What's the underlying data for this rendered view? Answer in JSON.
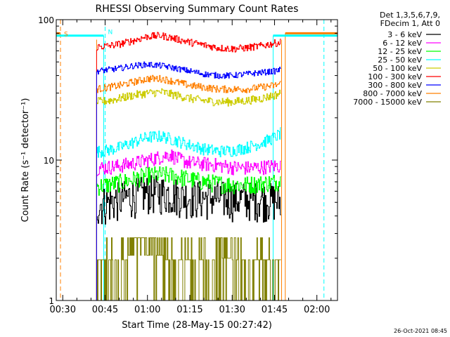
{
  "chart_data": {
    "type": "line",
    "title": "RHESSI Observing Summary Count Rates",
    "xlabel": "Start Time (28-May-15 00:27:42)",
    "ylabel": "Count Rate (s⁻¹ detector⁻¹)",
    "y_scale": "log",
    "ylim": [
      1,
      100
    ],
    "xlim_minutes": [
      27.7,
      127.3
    ],
    "y_ticks": [
      {
        "value": 1,
        "label": "1"
      },
      {
        "value": 10,
        "label": "10"
      },
      {
        "value": 100,
        "label": "100"
      }
    ],
    "x_ticks": [
      {
        "minutes": 30,
        "label": "00:30"
      },
      {
        "minutes": 45,
        "label": "00:45"
      },
      {
        "minutes": 60,
        "label": "01:00"
      },
      {
        "minutes": 75,
        "label": "01:15"
      },
      {
        "minutes": 90,
        "label": "01:30"
      },
      {
        "minutes": 105,
        "label": "01:45"
      },
      {
        "minutes": 120,
        "label": "02:00"
      }
    ],
    "legend_header": [
      "Det 1,3,5,6,7,9,",
      "FDecim 1, Att 0"
    ],
    "legend_position": "outside-right",
    "series": [
      {
        "name": "3 - 6 keV",
        "color": "#000000",
        "x": [
          42,
          46,
          50,
          55,
          60,
          65,
          70,
          75,
          80,
          85,
          90,
          95,
          100,
          105,
          107
        ],
        "y": [
          4.8,
          5.0,
          5.3,
          5.6,
          5.9,
          5.9,
          5.7,
          5.5,
          5.4,
          5.4,
          5.3,
          5.3,
          5.3,
          5.2,
          5.1
        ]
      },
      {
        "name": "6 - 12 keV",
        "color": "#ff00ff",
        "x": [
          42,
          46,
          50,
          55,
          60,
          65,
          68,
          70,
          75,
          80,
          85,
          90,
          95,
          100,
          105,
          107
        ],
        "y": [
          8.8,
          8.9,
          9.1,
          9.5,
          10.0,
          10.6,
          11.0,
          10.3,
          9.6,
          9.4,
          9.2,
          8.9,
          8.8,
          8.9,
          9.1,
          9.1
        ]
      },
      {
        "name": "12 - 25 keV",
        "color": "#00ff00",
        "x": [
          42,
          46,
          50,
          55,
          60,
          65,
          70,
          75,
          80,
          85,
          90,
          95,
          100,
          105,
          107
        ],
        "y": [
          6.5,
          6.7,
          6.9,
          7.3,
          7.8,
          7.9,
          7.7,
          7.3,
          7.0,
          6.8,
          6.7,
          6.7,
          6.8,
          7.0,
          7.1
        ]
      },
      {
        "name": "25 - 50 keV",
        "color": "#00ffff",
        "x": [
          42,
          46,
          50,
          55,
          60,
          65,
          70,
          75,
          80,
          85,
          90,
          95,
          100,
          105,
          107
        ],
        "y": [
          11.5,
          11.8,
          12.3,
          13.4,
          14.6,
          14.8,
          13.8,
          12.8,
          12.0,
          11.6,
          11.7,
          12.3,
          13.2,
          14.5,
          15.5
        ]
      },
      {
        "name": "50 - 100 keV",
        "color": "#cccc00",
        "x": [
          42,
          46,
          50,
          55,
          60,
          65,
          70,
          75,
          80,
          85,
          90,
          95,
          100,
          105,
          107
        ],
        "y": [
          26,
          26.5,
          27.5,
          29,
          30,
          30.5,
          29,
          27.5,
          26.5,
          26,
          26,
          26.5,
          27.5,
          29,
          30
        ]
      },
      {
        "name": "100 - 300 keV",
        "color": "#ff0000",
        "x": [
          42,
          46,
          50,
          55,
          60,
          65,
          70,
          75,
          80,
          85,
          90,
          95,
          100,
          105,
          107
        ],
        "y": [
          64,
          65,
          67,
          71,
          76,
          77,
          73,
          69,
          66,
          63,
          62,
          63,
          65,
          68,
          69
        ]
      },
      {
        "name": "300 - 800 keV",
        "color": "#0000ff",
        "x": [
          42,
          46,
          50,
          55,
          60,
          65,
          70,
          75,
          80,
          85,
          90,
          95,
          100,
          105,
          107
        ],
        "y": [
          43,
          44,
          45,
          47,
          48,
          47,
          45,
          43,
          41,
          40,
          40,
          41,
          42,
          43,
          44
        ]
      },
      {
        "name": "800 - 7000 keV",
        "color": "#ff8000",
        "x": [
          42,
          46,
          50,
          55,
          60,
          65,
          70,
          75,
          80,
          85,
          90,
          95,
          100,
          105,
          107
        ],
        "y": [
          32,
          33,
          34,
          36,
          38,
          38,
          36,
          34,
          33,
          32,
          32,
          32,
          33,
          34,
          35
        ]
      },
      {
        "name": "7000 - 15000 keV",
        "color": "#808000",
        "x": [
          42,
          107
        ],
        "y": [
          1.5,
          1.5
        ]
      }
    ],
    "annotations": {
      "S_label": "S",
      "N_label": "N"
    }
  },
  "footer": {
    "timestamp": "26-Oct-2021 08:45"
  }
}
